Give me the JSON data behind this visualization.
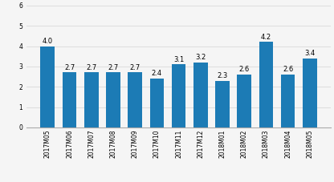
{
  "categories": [
    "2017M05",
    "2017M06",
    "2017M07",
    "2017M08",
    "2017M09",
    "2017M10",
    "2017M11",
    "2017M12",
    "2018M01",
    "2018M02",
    "2018M03",
    "2018M04",
    "2018M05"
  ],
  "values": [
    4.0,
    2.7,
    2.7,
    2.7,
    2.7,
    2.4,
    3.1,
    3.2,
    2.3,
    2.6,
    4.2,
    2.6,
    3.4
  ],
  "bar_color": "#1c7bb5",
  "ylim": [
    0,
    6
  ],
  "yticks": [
    0,
    1,
    2,
    3,
    4,
    5,
    6
  ],
  "grid_color": "#d9d9d9",
  "background_color": "#f5f5f5",
  "value_fontsize": 6.0,
  "tick_fontsize": 5.5
}
